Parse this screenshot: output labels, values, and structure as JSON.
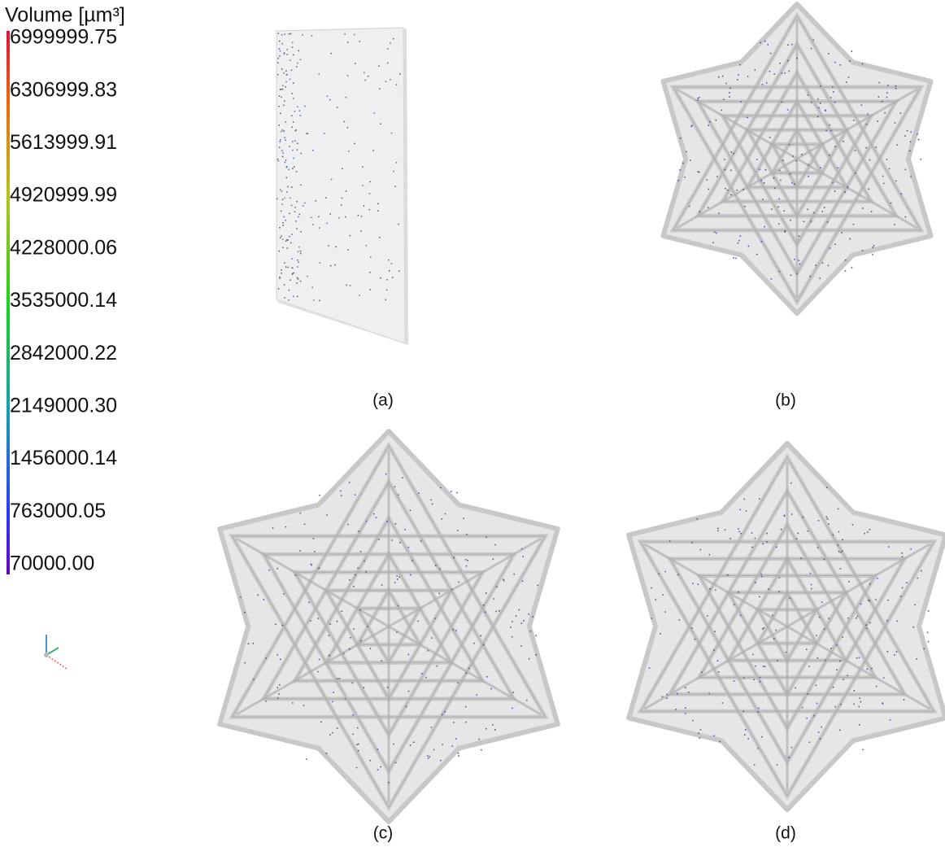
{
  "legend": {
    "title": "Volume [µm³]",
    "labels": [
      "6999999.75",
      "6306999.83",
      "5613999.91",
      "4920999.99",
      "4228000.06",
      "3535000.14",
      "2842000.22",
      "2149000.30",
      "1456000.14",
      "763000.05",
      "70000.00"
    ]
  },
  "panels": [
    {
      "label": "(a)"
    },
    {
      "label": "(b)"
    },
    {
      "label": "(c)"
    },
    {
      "label": "(d)"
    }
  ]
}
